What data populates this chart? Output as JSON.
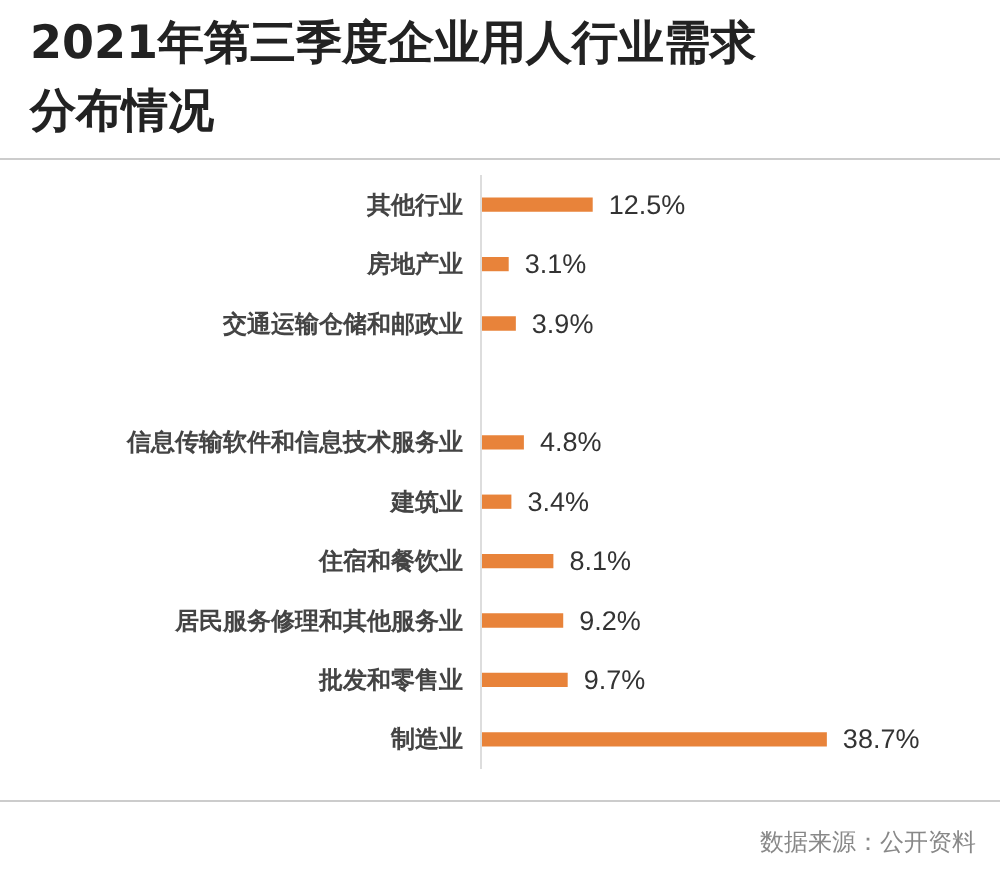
{
  "chart_data": {
    "type": "bar",
    "orientation": "horizontal",
    "title": "2021年第三季度企业用人行业需求分布情况",
    "categories": [
      "其他行业",
      "房地产业",
      "交通运输仓储和邮政业",
      null,
      "信息传输软件和信息技术服务业",
      "建筑业",
      "住宿和餐饮业",
      "居民服务修理和其他服务业",
      "批发和零售业",
      "制造业"
    ],
    "values": [
      12.5,
      3.1,
      3.9,
      null,
      4.8,
      3.4,
      8.1,
      9.2,
      9.7,
      38.7
    ],
    "value_labels": [
      "12.5%",
      "3.1%",
      "3.9%",
      null,
      "4.8%",
      "3.4%",
      "8.1%",
      "9.2%",
      "9.7%",
      "38.7%"
    ],
    "color": "#e8833a",
    "tick_labels": "y",
    "annotations": [
      "数据来源：公开资料"
    ]
  }
}
